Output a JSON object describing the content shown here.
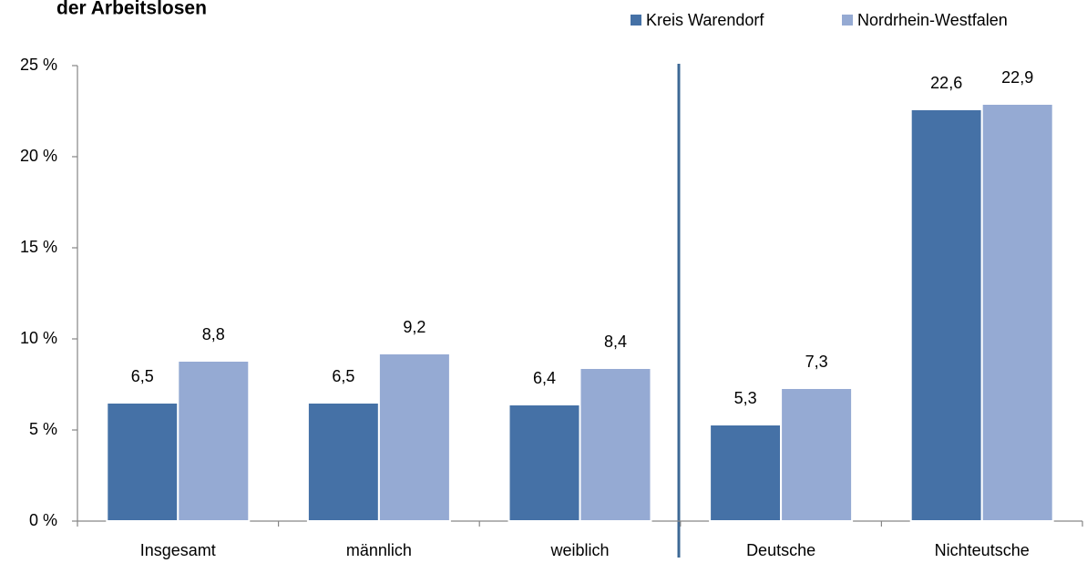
{
  "chart_data": {
    "type": "bar",
    "title": "der Arbeitslosen",
    "categories": [
      "Insgesamt",
      "männlich",
      "weiblich",
      "Deutsche",
      "Nichteutsche"
    ],
    "series": [
      {
        "name": "Kreis Warendorf",
        "color": "#4571a6",
        "values": [
          6.5,
          6.5,
          6.4,
          5.3,
          22.6
        ],
        "value_labels": [
          "6,5",
          "6,5",
          "6,4",
          "5,3",
          "22,6"
        ]
      },
      {
        "name": "Nordrhein-Westfalen",
        "color": "#95aad3",
        "values": [
          8.8,
          9.2,
          8.4,
          7.3,
          22.9
        ],
        "value_labels": [
          "8,8",
          "9,2",
          "8,4",
          "7,3",
          "22,9"
        ]
      }
    ],
    "ylim": [
      0,
      25
    ],
    "yticks": [
      {
        "value": 0,
        "label": "0 %"
      },
      {
        "value": 5,
        "label": "5 %"
      },
      {
        "value": 10,
        "label": "10 %"
      },
      {
        "value": 15,
        "label": "15 %"
      },
      {
        "value": 20,
        "label": "20 %"
      },
      {
        "value": 25,
        "label": "25 %"
      }
    ],
    "grid": false,
    "legend": "top-right"
  }
}
